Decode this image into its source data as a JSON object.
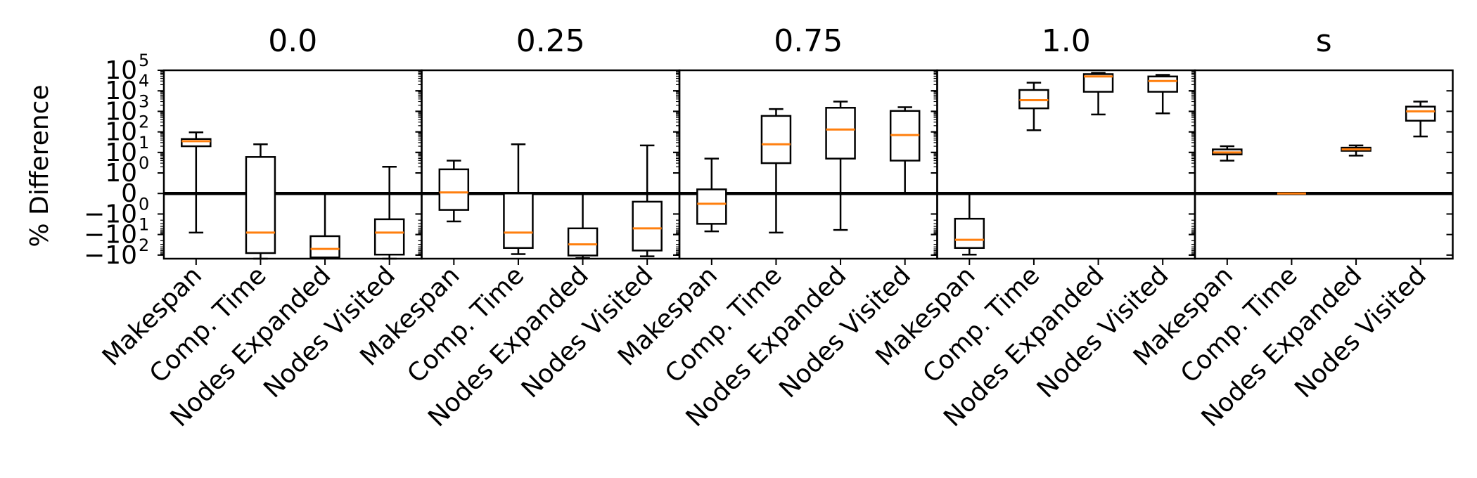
{
  "chart_data": {
    "type": "box",
    "ylabel": "% Difference",
    "yscale": "symlog",
    "linthresh": 1,
    "ylim": [
      -150,
      100000
    ],
    "yticks": [
      {
        "value": 100000,
        "base": "10",
        "exp": "5"
      },
      {
        "value": 10000,
        "base": "10",
        "exp": "4"
      },
      {
        "value": 1000,
        "base": "10",
        "exp": "3"
      },
      {
        "value": 100,
        "base": "10",
        "exp": "2"
      },
      {
        "value": 10,
        "base": "10",
        "exp": "1"
      },
      {
        "value": 1,
        "base": "10",
        "exp": "0"
      },
      {
        "value": 0,
        "base": "0",
        "exp": ""
      },
      {
        "value": -1,
        "base": "−10",
        "exp": "0"
      },
      {
        "value": -10,
        "base": "−10",
        "exp": "1"
      },
      {
        "value": -100,
        "base": "−10",
        "exp": "2"
      }
    ],
    "categories": [
      "Makespan",
      "Comp. Time",
      "Nodes Expanded",
      "Nodes Visited"
    ],
    "reference_line": 0,
    "median_color": "#ff7f0e",
    "panels": [
      {
        "title": "0.0",
        "boxes": [
          {
            "whislo": -8,
            "q1": 20,
            "med": 35,
            "q3": 45,
            "whishi": 95
          },
          {
            "whislo": -150,
            "q1": -80,
            "med": -8,
            "q3": 6,
            "whishi": 25
          },
          {
            "whislo": -140,
            "q1": -130,
            "med": -50,
            "q3": -12,
            "whishi": 0
          },
          {
            "whislo": -150,
            "q1": -95,
            "med": -8,
            "q3": -1.8,
            "whishi": 2
          }
        ]
      },
      {
        "title": "0.25",
        "boxes": [
          {
            "whislo": -2.3,
            "q1": -0.8,
            "med": 0.05,
            "q3": 1.5,
            "whishi": 4
          },
          {
            "whislo": -90,
            "q1": -45,
            "med": -8,
            "q3": 0,
            "whishi": 25
          },
          {
            "whislo": -140,
            "q1": -105,
            "med": -30,
            "q3": -5,
            "whishi": 0
          },
          {
            "whislo": -115,
            "q1": -60,
            "med": -5,
            "q3": -0.4,
            "whishi": 22
          }
        ]
      },
      {
        "title": "0.75",
        "boxes": [
          {
            "whislo": -7,
            "q1": -3,
            "med": -0.5,
            "q3": 0.2,
            "whishi": 5
          },
          {
            "whislo": -8,
            "q1": 3,
            "med": 25,
            "q3": 600,
            "whishi": 1300
          },
          {
            "whislo": -6,
            "q1": 5,
            "med": 130,
            "q3": 1500,
            "whishi": 3000
          },
          {
            "whislo": 0,
            "q1": 4,
            "med": 70,
            "q3": 1050,
            "whishi": 1600
          }
        ]
      },
      {
        "title": "1.0",
        "boxes": [
          {
            "whislo": -95,
            "q1": -45,
            "med": -18,
            "q3": -1.7,
            "whishi": 0
          },
          {
            "whislo": 120,
            "q1": 1400,
            "med": 3500,
            "q3": 11000,
            "whishi": 25000
          },
          {
            "whislo": 700,
            "q1": 9000,
            "med": 50000,
            "q3": 65000,
            "whishi": 75000
          },
          {
            "whislo": 800,
            "q1": 9000,
            "med": 30000,
            "q3": 50000,
            "whishi": 60000
          }
        ]
      },
      {
        "title": "s",
        "boxes": [
          {
            "whislo": 4,
            "q1": 8,
            "med": 10,
            "q3": 14,
            "whishi": 20
          },
          {
            "whislo": 0,
            "q1": 0,
            "med": 0,
            "q3": 0,
            "whishi": 0
          },
          {
            "whislo": 7,
            "q1": 12,
            "med": 14,
            "q3": 17,
            "whishi": 22
          },
          {
            "whislo": 60,
            "q1": 350,
            "med": 1000,
            "q3": 1700,
            "whishi": 3000
          }
        ]
      }
    ]
  }
}
